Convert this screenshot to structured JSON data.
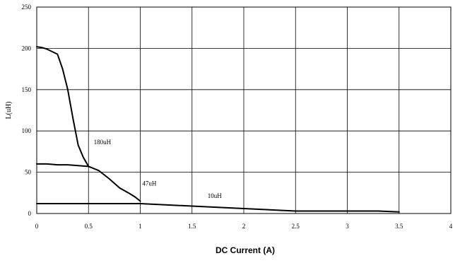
{
  "chart_data": {
    "type": "line",
    "title": "",
    "xlabel": "DC Current (A)",
    "ylabel": "L(uH)",
    "xlim": [
      0,
      4
    ],
    "ylim": [
      0,
      250
    ],
    "x_ticks": [
      "0",
      "0.5",
      "1",
      "1.5",
      "2",
      "2.5",
      "3",
      "3.5",
      "4"
    ],
    "y_ticks": [
      "0",
      "50",
      "100",
      "150",
      "200",
      "250"
    ],
    "grid": true,
    "legend": "none",
    "series": [
      {
        "name": "180uH",
        "x": [
          0,
          0.05,
          0.1,
          0.2,
          0.25,
          0.3,
          0.35,
          0.4,
          0.45,
          0.5
        ],
        "y": [
          202,
          201,
          199,
          193,
          175,
          150,
          115,
          83,
          68,
          57
        ]
      },
      {
        "name": "47uH",
        "x": [
          0,
          0.1,
          0.2,
          0.3,
          0.4,
          0.5,
          0.6,
          0.7,
          0.8,
          0.9,
          0.95,
          1.0
        ],
        "y": [
          60,
          60,
          59,
          59,
          58,
          57,
          52,
          42,
          31,
          24,
          20,
          15
        ]
      },
      {
        "name": "10uH",
        "x": [
          0,
          0.5,
          1.0,
          1.5,
          2.0,
          2.5,
          3.0,
          3.3,
          3.5
        ],
        "y": [
          12,
          12,
          12,
          9,
          6,
          3,
          3,
          3,
          2
        ]
      }
    ],
    "annotations": [
      {
        "text": "180uH",
        "x": 0.55,
        "y": 84
      },
      {
        "text": "47uH",
        "x": 1.02,
        "y": 34
      },
      {
        "text": "10uH",
        "x": 1.65,
        "y": 19
      }
    ]
  }
}
